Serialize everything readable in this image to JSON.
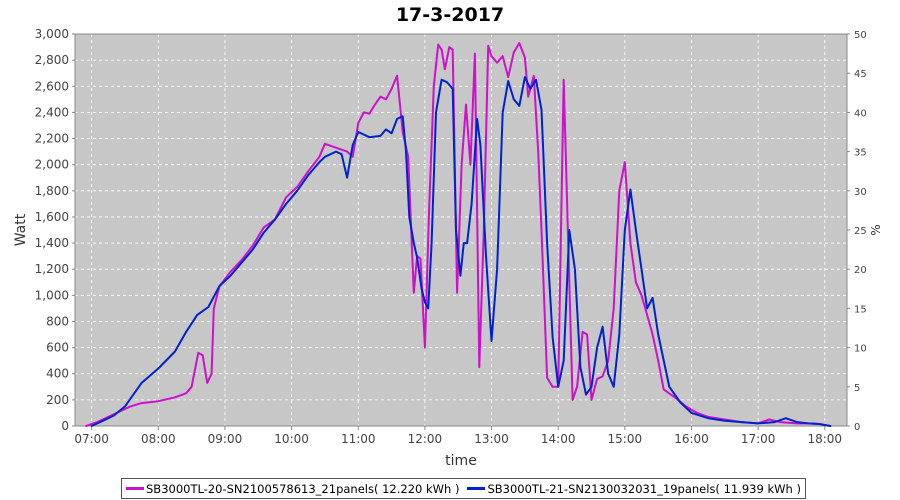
{
  "chart_data": {
    "type": "line",
    "title": "17-3-2017",
    "xlabel": "time",
    "ylabel": "Watt",
    "y2label": "%",
    "xticks": [
      "07:00",
      "08:00",
      "09:00",
      "10:00",
      "11:00",
      "12:00",
      "13:00",
      "14:00",
      "15:00",
      "16:00",
      "17:00",
      "18:00"
    ],
    "xlim": [
      "06:45",
      "18:20"
    ],
    "ylim": [
      0,
      3000
    ],
    "ytick_step": 200,
    "y2lim": [
      0,
      50
    ],
    "y2tick_step": 5,
    "grid": true,
    "legend_position": "bottom",
    "series": [
      {
        "name": "SB3000TL-20-SN2100578613_21panels( 12.220 kWh )",
        "color": "#cc11cc",
        "points": [
          [
            "06:55",
            0
          ],
          [
            "07:05",
            30
          ],
          [
            "07:15",
            70
          ],
          [
            "07:25",
            110
          ],
          [
            "07:35",
            150
          ],
          [
            "07:45",
            175
          ],
          [
            "08:00",
            190
          ],
          [
            "08:15",
            220
          ],
          [
            "08:25",
            250
          ],
          [
            "08:30",
            300
          ],
          [
            "08:36",
            560
          ],
          [
            "08:40",
            540
          ],
          [
            "08:44",
            330
          ],
          [
            "08:48",
            400
          ],
          [
            "08:50",
            900
          ],
          [
            "08:55",
            1070
          ],
          [
            "09:05",
            1180
          ],
          [
            "09:15",
            1270
          ],
          [
            "09:25",
            1380
          ],
          [
            "09:35",
            1520
          ],
          [
            "09:45",
            1580
          ],
          [
            "09:55",
            1750
          ],
          [
            "10:05",
            1830
          ],
          [
            "10:15",
            1950
          ],
          [
            "10:25",
            2060
          ],
          [
            "10:30",
            2160
          ],
          [
            "10:40",
            2130
          ],
          [
            "10:50",
            2100
          ],
          [
            "10:55",
            2060
          ],
          [
            "11:00",
            2320
          ],
          [
            "11:05",
            2400
          ],
          [
            "11:10",
            2390
          ],
          [
            "11:15",
            2460
          ],
          [
            "11:20",
            2520
          ],
          [
            "11:25",
            2500
          ],
          [
            "11:30",
            2580
          ],
          [
            "11:35",
            2680
          ],
          [
            "11:40",
            2250
          ],
          [
            "11:45",
            2060
          ],
          [
            "11:50",
            1020
          ],
          [
            "11:53",
            1300
          ],
          [
            "11:56",
            1280
          ],
          [
            "12:00",
            600
          ],
          [
            "12:04",
            1700
          ],
          [
            "12:08",
            2600
          ],
          [
            "12:12",
            2920
          ],
          [
            "12:15",
            2880
          ],
          [
            "12:18",
            2730
          ],
          [
            "12:22",
            2900
          ],
          [
            "12:25",
            2880
          ],
          [
            "12:29",
            1020
          ],
          [
            "12:33",
            2000
          ],
          [
            "12:37",
            2460
          ],
          [
            "12:41",
            2000
          ],
          [
            "12:45",
            2850
          ],
          [
            "12:49",
            450
          ],
          [
            "12:53",
            1500
          ],
          [
            "12:57",
            2910
          ],
          [
            "13:00",
            2830
          ],
          [
            "13:05",
            2780
          ],
          [
            "13:10",
            2830
          ],
          [
            "13:15",
            2670
          ],
          [
            "13:20",
            2860
          ],
          [
            "13:25",
            2930
          ],
          [
            "13:30",
            2820
          ],
          [
            "13:33",
            2520
          ],
          [
            "13:38",
            2680
          ],
          [
            "13:42",
            2100
          ],
          [
            "13:45",
            1500
          ],
          [
            "13:50",
            370
          ],
          [
            "13:55",
            300
          ],
          [
            "14:00",
            300
          ],
          [
            "14:05",
            2650
          ],
          [
            "14:10",
            1100
          ],
          [
            "14:13",
            200
          ],
          [
            "14:17",
            300
          ],
          [
            "14:22",
            720
          ],
          [
            "14:26",
            700
          ],
          [
            "14:30",
            200
          ],
          [
            "14:35",
            360
          ],
          [
            "14:40",
            380
          ],
          [
            "14:45",
            500
          ],
          [
            "14:50",
            900
          ],
          [
            "14:55",
            1800
          ],
          [
            "15:00",
            2020
          ],
          [
            "15:05",
            1400
          ],
          [
            "15:10",
            1100
          ],
          [
            "15:15",
            1000
          ],
          [
            "15:20",
            850
          ],
          [
            "15:25",
            700
          ],
          [
            "15:30",
            500
          ],
          [
            "15:35",
            280
          ],
          [
            "15:45",
            220
          ],
          [
            "15:55",
            150
          ],
          [
            "16:05",
            100
          ],
          [
            "16:15",
            70
          ],
          [
            "16:30",
            50
          ],
          [
            "16:45",
            30
          ],
          [
            "17:00",
            20
          ],
          [
            "17:10",
            50
          ],
          [
            "17:20",
            30
          ],
          [
            "17:35",
            20
          ],
          [
            "17:45",
            20
          ],
          [
            "17:55",
            15
          ],
          [
            "18:05",
            0
          ]
        ]
      },
      {
        "name": "SB3000TL-21-SN2130032031_19panels( 11.939 kWh )",
        "color": "#0022cc",
        "points": [
          [
            "07:00",
            0
          ],
          [
            "07:10",
            40
          ],
          [
            "07:20",
            80
          ],
          [
            "07:30",
            150
          ],
          [
            "07:45",
            330
          ],
          [
            "08:00",
            440
          ],
          [
            "08:15",
            570
          ],
          [
            "08:25",
            720
          ],
          [
            "08:35",
            850
          ],
          [
            "08:45",
            910
          ],
          [
            "08:55",
            1070
          ],
          [
            "09:05",
            1150
          ],
          [
            "09:15",
            1250
          ],
          [
            "09:25",
            1350
          ],
          [
            "09:35",
            1480
          ],
          [
            "09:45",
            1580
          ],
          [
            "09:55",
            1700
          ],
          [
            "10:05",
            1800
          ],
          [
            "10:15",
            1920
          ],
          [
            "10:25",
            2020
          ],
          [
            "10:30",
            2060
          ],
          [
            "10:40",
            2100
          ],
          [
            "10:45",
            2080
          ],
          [
            "10:50",
            1900
          ],
          [
            "10:55",
            2150
          ],
          [
            "11:00",
            2250
          ],
          [
            "11:10",
            2210
          ],
          [
            "11:20",
            2220
          ],
          [
            "11:25",
            2270
          ],
          [
            "11:30",
            2240
          ],
          [
            "11:35",
            2350
          ],
          [
            "11:40",
            2370
          ],
          [
            "11:43",
            2100
          ],
          [
            "11:46",
            1600
          ],
          [
            "11:50",
            1400
          ],
          [
            "11:53",
            1290
          ],
          [
            "11:57",
            1050
          ],
          [
            "12:00",
            950
          ],
          [
            "12:03",
            900
          ],
          [
            "12:06",
            1400
          ],
          [
            "12:10",
            2400
          ],
          [
            "12:15",
            2650
          ],
          [
            "12:20",
            2630
          ],
          [
            "12:25",
            2580
          ],
          [
            "12:28",
            1500
          ],
          [
            "12:32",
            1150
          ],
          [
            "12:35",
            1400
          ],
          [
            "12:38",
            1400
          ],
          [
            "12:42",
            1700
          ],
          [
            "12:47",
            2350
          ],
          [
            "12:50",
            2150
          ],
          [
            "12:55",
            1300
          ],
          [
            "13:00",
            650
          ],
          [
            "13:05",
            1200
          ],
          [
            "13:10",
            2400
          ],
          [
            "13:15",
            2640
          ],
          [
            "13:20",
            2500
          ],
          [
            "13:25",
            2450
          ],
          [
            "13:30",
            2670
          ],
          [
            "13:35",
            2580
          ],
          [
            "13:40",
            2650
          ],
          [
            "13:45",
            2420
          ],
          [
            "13:50",
            1400
          ],
          [
            "13:55",
            680
          ],
          [
            "14:00",
            300
          ],
          [
            "14:05",
            500
          ],
          [
            "14:10",
            1500
          ],
          [
            "14:15",
            1200
          ],
          [
            "14:20",
            450
          ],
          [
            "14:25",
            240
          ],
          [
            "14:30",
            300
          ],
          [
            "14:35",
            600
          ],
          [
            "14:40",
            760
          ],
          [
            "14:45",
            400
          ],
          [
            "14:50",
            300
          ],
          [
            "14:55",
            700
          ],
          [
            "15:00",
            1500
          ],
          [
            "15:05",
            1810
          ],
          [
            "15:10",
            1500
          ],
          [
            "15:15",
            1200
          ],
          [
            "15:20",
            900
          ],
          [
            "15:25",
            980
          ],
          [
            "15:30",
            700
          ],
          [
            "15:40",
            300
          ],
          [
            "15:50",
            180
          ],
          [
            "16:00",
            100
          ],
          [
            "16:15",
            60
          ],
          [
            "16:30",
            40
          ],
          [
            "16:45",
            30
          ],
          [
            "17:00",
            20
          ],
          [
            "17:15",
            30
          ],
          [
            "17:25",
            60
          ],
          [
            "17:35",
            30
          ],
          [
            "17:45",
            20
          ],
          [
            "17:55",
            15
          ],
          [
            "18:05",
            0
          ]
        ]
      }
    ]
  }
}
